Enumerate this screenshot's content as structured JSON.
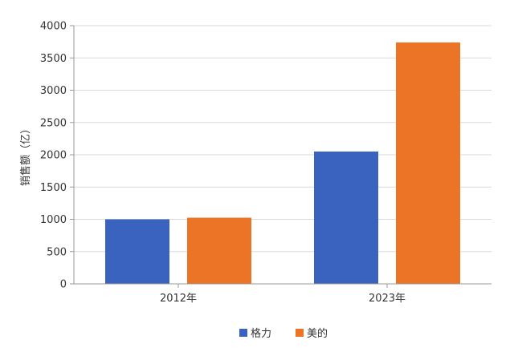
{
  "chart_data": {
    "type": "bar",
    "categories": [
      "2012年",
      "2023年"
    ],
    "series": [
      {
        "name": "格力",
        "values": [
          1000,
          2050
        ],
        "color": "#3A63BF"
      },
      {
        "name": "美的",
        "values": [
          1025,
          3740
        ],
        "color": "#EC7426"
      }
    ],
    "ylabel": "销售额（亿）",
    "xlabel": "",
    "ylim": [
      0,
      4000
    ],
    "yticks": [
      0,
      500,
      1000,
      1500,
      2000,
      2500,
      3000,
      3500,
      4000
    ],
    "grid": true,
    "legend": "bottom"
  }
}
